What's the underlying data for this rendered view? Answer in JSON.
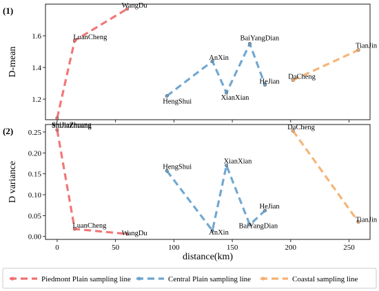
{
  "chart_data": {
    "xlabel": "distance(km)",
    "xlim": [
      -10,
      268
    ],
    "xticks": [
      0,
      50,
      100,
      150,
      200,
      250
    ],
    "panels": [
      {
        "type": "line",
        "panel_label": "(1)",
        "ylabel": "D-mean",
        "ylim": [
          1.07,
          1.8
        ],
        "yticks": [
          1.2,
          1.4,
          1.6
        ],
        "series": [
          {
            "name": "Piedmont Plain sampling line",
            "color": "#f07070",
            "points": [
              {
                "label": "ShiJiaZhuang",
                "x": 0,
                "y": 1.08
              },
              {
                "label": "LuanCheng",
                "x": 15,
                "y": 1.57
              },
              {
                "label": "WangDu",
                "x": 60,
                "y": 1.77
              }
            ]
          },
          {
            "name": "Central Plain sampling line",
            "color": "#6aa3cf",
            "points": [
              {
                "label": "HengShui",
                "x": 94,
                "y": 1.22
              },
              {
                "label": "AnXin",
                "x": 133,
                "y": 1.44
              },
              {
                "label": "XianXian",
                "x": 145,
                "y": 1.24
              },
              {
                "label": "BaiYangDian",
                "x": 165,
                "y": 1.55
              },
              {
                "label": "HeJian",
                "x": 178,
                "y": 1.29
              }
            ]
          },
          {
            "name": "Coastal sampling line",
            "color": "#f5b070",
            "points": [
              {
                "label": "DaCheng",
                "x": 202,
                "y": 1.32
              },
              {
                "label": "TianJin",
                "x": 258,
                "y": 1.51
              }
            ]
          }
        ]
      },
      {
        "type": "line",
        "panel_label": "(2)",
        "ylabel": "D variance",
        "ylim": [
          -0.007,
          0.268
        ],
        "yticks": [
          0.0,
          0.05,
          0.1,
          0.15,
          0.2,
          0.25
        ],
        "series": [
          {
            "name": "Piedmont Plain sampling line",
            "color": "#f07070",
            "points": [
              {
                "label": "ShiJiaZhuang",
                "x": 0,
                "y": 0.255
              },
              {
                "label": "LuanCheng",
                "x": 15,
                "y": 0.018
              },
              {
                "label": "WangDu",
                "x": 60,
                "y": 0.006
              }
            ]
          },
          {
            "name": "Central Plain sampling line",
            "color": "#6aa3cf",
            "points": [
              {
                "label": "HengShui",
                "x": 94,
                "y": 0.157
              },
              {
                "label": "AnXin",
                "x": 133,
                "y": 0.014
              },
              {
                "label": "XianXian",
                "x": 145,
                "y": 0.17
              },
              {
                "label": "BaiYangDian",
                "x": 165,
                "y": 0.028
              },
              {
                "label": "HeJian",
                "x": 178,
                "y": 0.062
              }
            ]
          },
          {
            "name": "Coastal sampling line",
            "color": "#f5b070",
            "points": [
              {
                "label": "DaCheng",
                "x": 202,
                "y": 0.253
              },
              {
                "label": "TianJin",
                "x": 258,
                "y": 0.035
              }
            ]
          }
        ]
      }
    ],
    "legend": {
      "placement": "bottom",
      "entries": [
        {
          "label": "Piedmont Plain sampling line",
          "color": "#f07070"
        },
        {
          "label": "Central Plain sampling line",
          "color": "#6aa3cf"
        },
        {
          "label": "Coastal sampling line",
          "color": "#f5b070"
        }
      ]
    }
  }
}
